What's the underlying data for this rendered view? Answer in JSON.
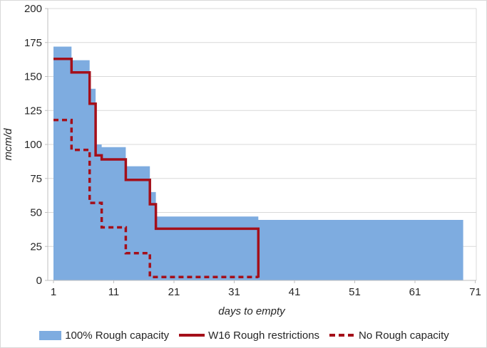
{
  "chart": {
    "background": "#ffffff",
    "border_color": "#d9d9d9",
    "grid_color": "#d9d9d9",
    "axis_color": "#bfbfbf",
    "text_color": "#262626",
    "y_axis": {
      "title": "mcm/d",
      "min": 0,
      "max": 200,
      "step": 25,
      "labels": [
        "0",
        "25",
        "50",
        "75",
        "100",
        "125",
        "150",
        "175",
        "200"
      ]
    },
    "x_axis": {
      "title": "days to empty",
      "labels": [
        "1",
        "11",
        "21",
        "31",
        "41",
        "51",
        "61",
        "71"
      ],
      "label_days": [
        1,
        11,
        21,
        31,
        41,
        51,
        61,
        71
      ]
    }
  },
  "chart_data": {
    "type": "area",
    "title": "",
    "xlabel": "days to empty",
    "ylabel": "mcm/d",
    "xlim": [
      1,
      71
    ],
    "ylim": [
      0,
      200
    ],
    "grid": true,
    "legend_position": "bottom",
    "note": "step functions: each [day, value] pair holds from that day until the next pair's day; end_day is where the series stops",
    "series": [
      {
        "name": "100% Rough capacity",
        "style": "area",
        "color": "#7eace0",
        "steps": [
          [
            1,
            172
          ],
          [
            4,
            162
          ],
          [
            7,
            141
          ],
          [
            8,
            100
          ],
          [
            9,
            98
          ],
          [
            13,
            84
          ],
          [
            17,
            65
          ],
          [
            18,
            47
          ],
          [
            35,
            44.5
          ]
        ],
        "end_day": 69
      },
      {
        "name": "W16 Rough restrictions",
        "style": "solid-line",
        "color": "#a40f1a",
        "steps": [
          [
            1,
            163
          ],
          [
            4,
            153
          ],
          [
            7,
            130
          ],
          [
            8,
            92
          ],
          [
            9,
            89
          ],
          [
            13,
            74
          ],
          [
            17,
            56
          ],
          [
            18,
            38
          ],
          [
            35,
            2
          ]
        ],
        "end_day": 35
      },
      {
        "name": "No Rough capacity",
        "style": "dashed-line",
        "color": "#a40f1a",
        "steps": [
          [
            1,
            118
          ],
          [
            4,
            96
          ],
          [
            7,
            57
          ],
          [
            9,
            39
          ],
          [
            13,
            20
          ],
          [
            17,
            2.5
          ]
        ],
        "end_day": 35
      }
    ]
  },
  "legend": {
    "items": [
      {
        "label": "100% Rough capacity",
        "swatch": "area",
        "color": "#7eace0"
      },
      {
        "label": "W16 Rough restrictions",
        "swatch": "solid-line",
        "color": "#a40f1a"
      },
      {
        "label": "No Rough capacity",
        "swatch": "dashed-line",
        "color": "#a40f1a"
      }
    ]
  }
}
